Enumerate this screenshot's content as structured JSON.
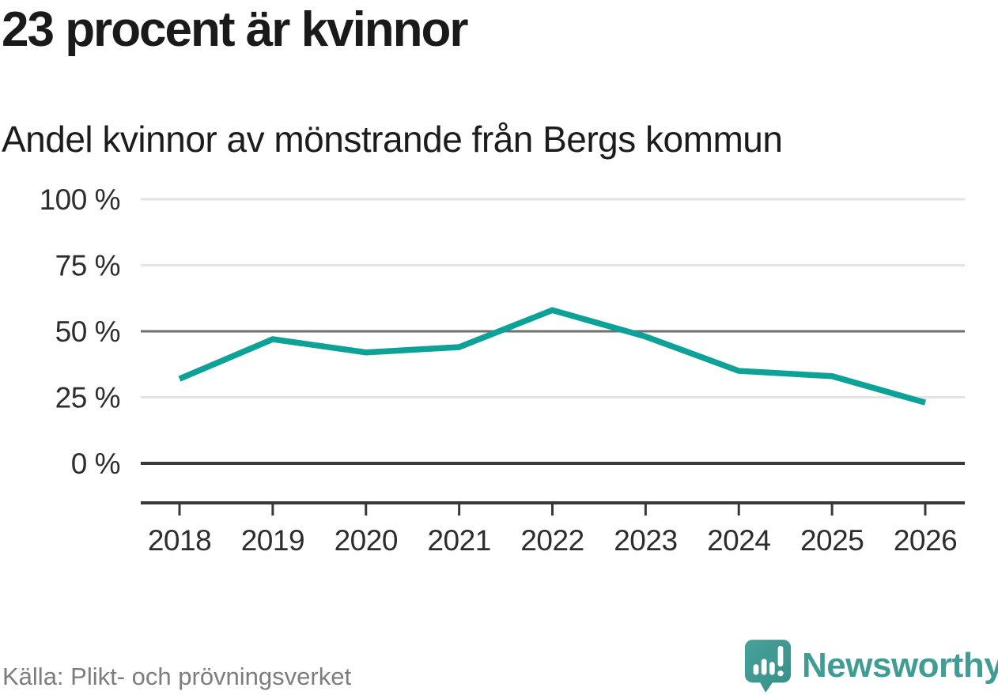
{
  "header": {
    "title": "23 procent är kvinnor",
    "subtitle": "Andel kvinnor av mönstrande från Bergs kommun"
  },
  "chart_data": {
    "type": "line",
    "title": "Andel kvinnor av mönstrande från Bergs kommun",
    "x_labels": [
      "2018",
      "2019",
      "2020",
      "2021",
      "2022",
      "2023",
      "2024",
      "2025",
      "2026"
    ],
    "series": [
      {
        "name": "Andel kvinnor av mönstrande",
        "values": [
          32,
          47,
          42,
          44,
          58,
          48,
          35,
          33,
          23
        ]
      }
    ],
    "unit": "%",
    "ylim": [
      0,
      100
    ],
    "yticks": [
      {
        "value": 0,
        "label": "0 %",
        "style": "baseline"
      },
      {
        "value": 25,
        "label": "25 %",
        "style": "light"
      },
      {
        "value": 50,
        "label": "50 %",
        "style": "emphasis"
      },
      {
        "value": 75,
        "label": "75 %",
        "style": "light"
      },
      {
        "value": 100,
        "label": "100 %",
        "style": "light"
      }
    ],
    "grid": "horizontal",
    "legend": "none"
  },
  "footer": {
    "source": "Källa: Plikt- och prövningsverket",
    "brand_name": "Newsworthy"
  },
  "colors": {
    "line": "#0da298",
    "grid_light": "#e3e3e3",
    "grid_emphasis": "#6f6f6f",
    "grid_baseline": "#383838",
    "axis": "#383838",
    "tick_label": "#2d2d2d",
    "title": "#1a1a1a",
    "subtitle": "#1c1c1c",
    "source": "#7d7d7d",
    "brand": "#3f9d95",
    "logo_bubble": "#46a29b",
    "logo_bubble_dark": "#388e87",
    "logo_marks": "#ffffff"
  }
}
